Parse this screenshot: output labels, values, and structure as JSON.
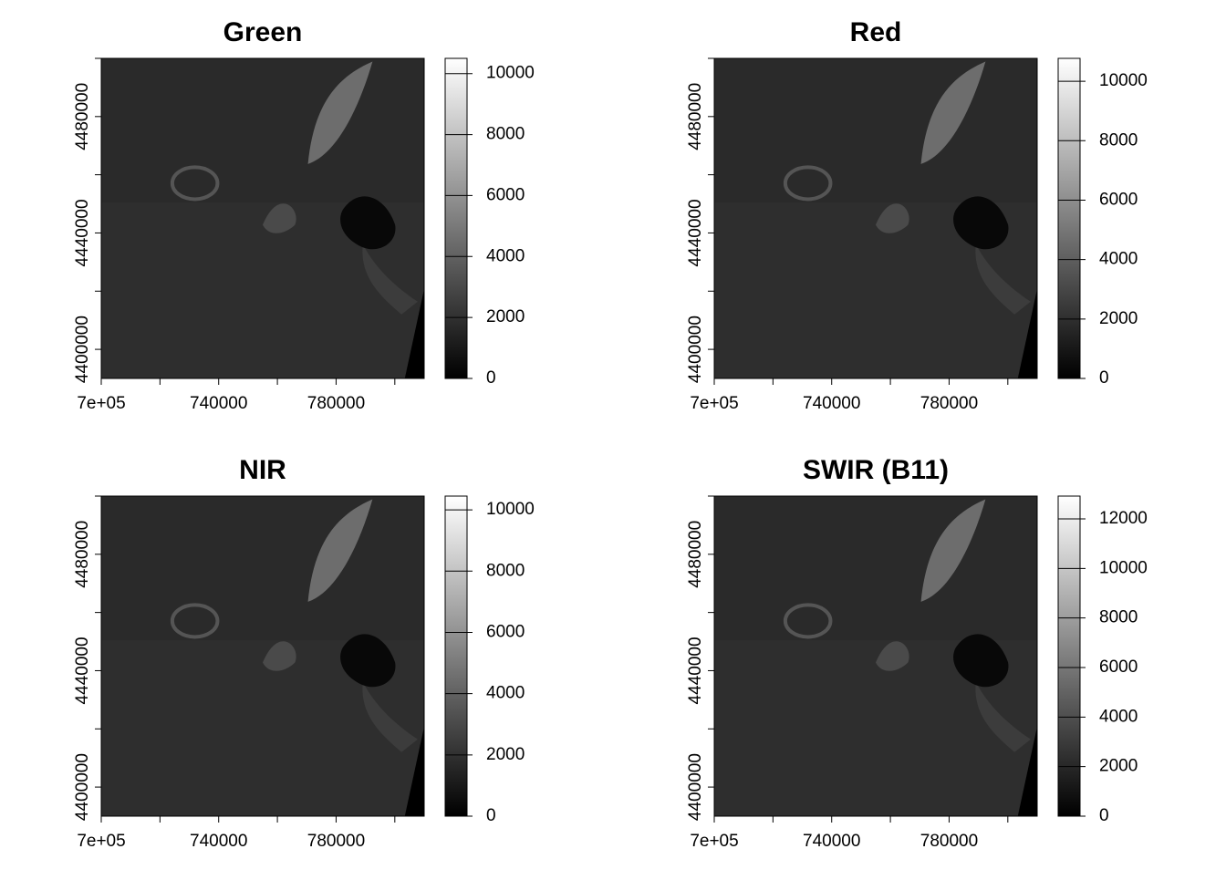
{
  "chart_data": [
    {
      "type": "raster",
      "title": "Green",
      "xlim": [
        700000,
        810000
      ],
      "ylim": [
        4390000,
        4500000
      ],
      "xticks": [
        {
          "value": 700000,
          "label": "7e+05"
        },
        {
          "value": 720000,
          "label": null
        },
        740000,
        {
          "value": 760000,
          "label": null
        },
        780000,
        {
          "value": 800000,
          "label": null
        }
      ],
      "yticks": [
        {
          "value": 4400000,
          "label": "4400000"
        },
        {
          "value": 4420000,
          "label": null
        },
        {
          "value": 4440000,
          "label": "4440000"
        },
        {
          "value": 4460000,
          "label": null
        },
        {
          "value": 4480000,
          "label": "4480000"
        },
        {
          "value": 4500000,
          "label": null
        }
      ],
      "zlim": [
        0,
        10500
      ],
      "zticks": [
        0,
        2000,
        4000,
        6000,
        8000,
        10000
      ],
      "colors": [
        "#000000",
        "#ffffff"
      ]
    },
    {
      "type": "raster",
      "title": "Red",
      "xlim": [
        700000,
        810000
      ],
      "ylim": [
        4390000,
        4500000
      ],
      "xticks": [
        {
          "value": 700000,
          "label": "7e+05"
        },
        {
          "value": 720000,
          "label": null
        },
        740000,
        {
          "value": 760000,
          "label": null
        },
        780000,
        {
          "value": 800000,
          "label": null
        }
      ],
      "yticks": [
        {
          "value": 4400000,
          "label": "4400000"
        },
        {
          "value": 4420000,
          "label": null
        },
        {
          "value": 4440000,
          "label": "4440000"
        },
        {
          "value": 4460000,
          "label": null
        },
        {
          "value": 4480000,
          "label": "4480000"
        },
        {
          "value": 4500000,
          "label": null
        }
      ],
      "zlim": [
        0,
        10770
      ],
      "zticks": [
        0,
        2000,
        4000,
        6000,
        8000,
        10000
      ],
      "colors": [
        "#000000",
        "#ffffff"
      ]
    },
    {
      "type": "raster",
      "title": "NIR",
      "xlim": [
        700000,
        810000
      ],
      "ylim": [
        4390000,
        4500000
      ],
      "xticks": [
        {
          "value": 700000,
          "label": "7e+05"
        },
        {
          "value": 720000,
          "label": null
        },
        740000,
        {
          "value": 760000,
          "label": null
        },
        780000,
        {
          "value": 800000,
          "label": null
        }
      ],
      "yticks": [
        {
          "value": 4400000,
          "label": "4400000"
        },
        {
          "value": 4420000,
          "label": null
        },
        {
          "value": 4440000,
          "label": "4440000"
        },
        {
          "value": 4460000,
          "label": null
        },
        {
          "value": 4480000,
          "label": "4480000"
        },
        {
          "value": 4500000,
          "label": null
        }
      ],
      "zlim": [
        0,
        10450
      ],
      "zticks": [
        0,
        2000,
        4000,
        6000,
        8000,
        10000
      ],
      "colors": [
        "#000000",
        "#ffffff"
      ]
    },
    {
      "type": "raster",
      "title": "SWIR (B11)",
      "xlim": [
        700000,
        810000
      ],
      "ylim": [
        4390000,
        4500000
      ],
      "xticks": [
        {
          "value": 700000,
          "label": "7e+05"
        },
        {
          "value": 720000,
          "label": null
        },
        740000,
        {
          "value": 760000,
          "label": null
        },
        780000,
        {
          "value": 800000,
          "label": null
        }
      ],
      "yticks": [
        {
          "value": 4400000,
          "label": "4400000"
        },
        {
          "value": 4420000,
          "label": null
        },
        {
          "value": 4440000,
          "label": "4440000"
        },
        {
          "value": 4460000,
          "label": null
        },
        {
          "value": 4480000,
          "label": "4480000"
        },
        {
          "value": 4500000,
          "label": null
        }
      ],
      "zlim": [
        0,
        12920
      ],
      "zticks": [
        0,
        2000,
        4000,
        6000,
        8000,
        10000,
        12000
      ],
      "colors": [
        "#000000",
        "#ffffff"
      ]
    }
  ]
}
